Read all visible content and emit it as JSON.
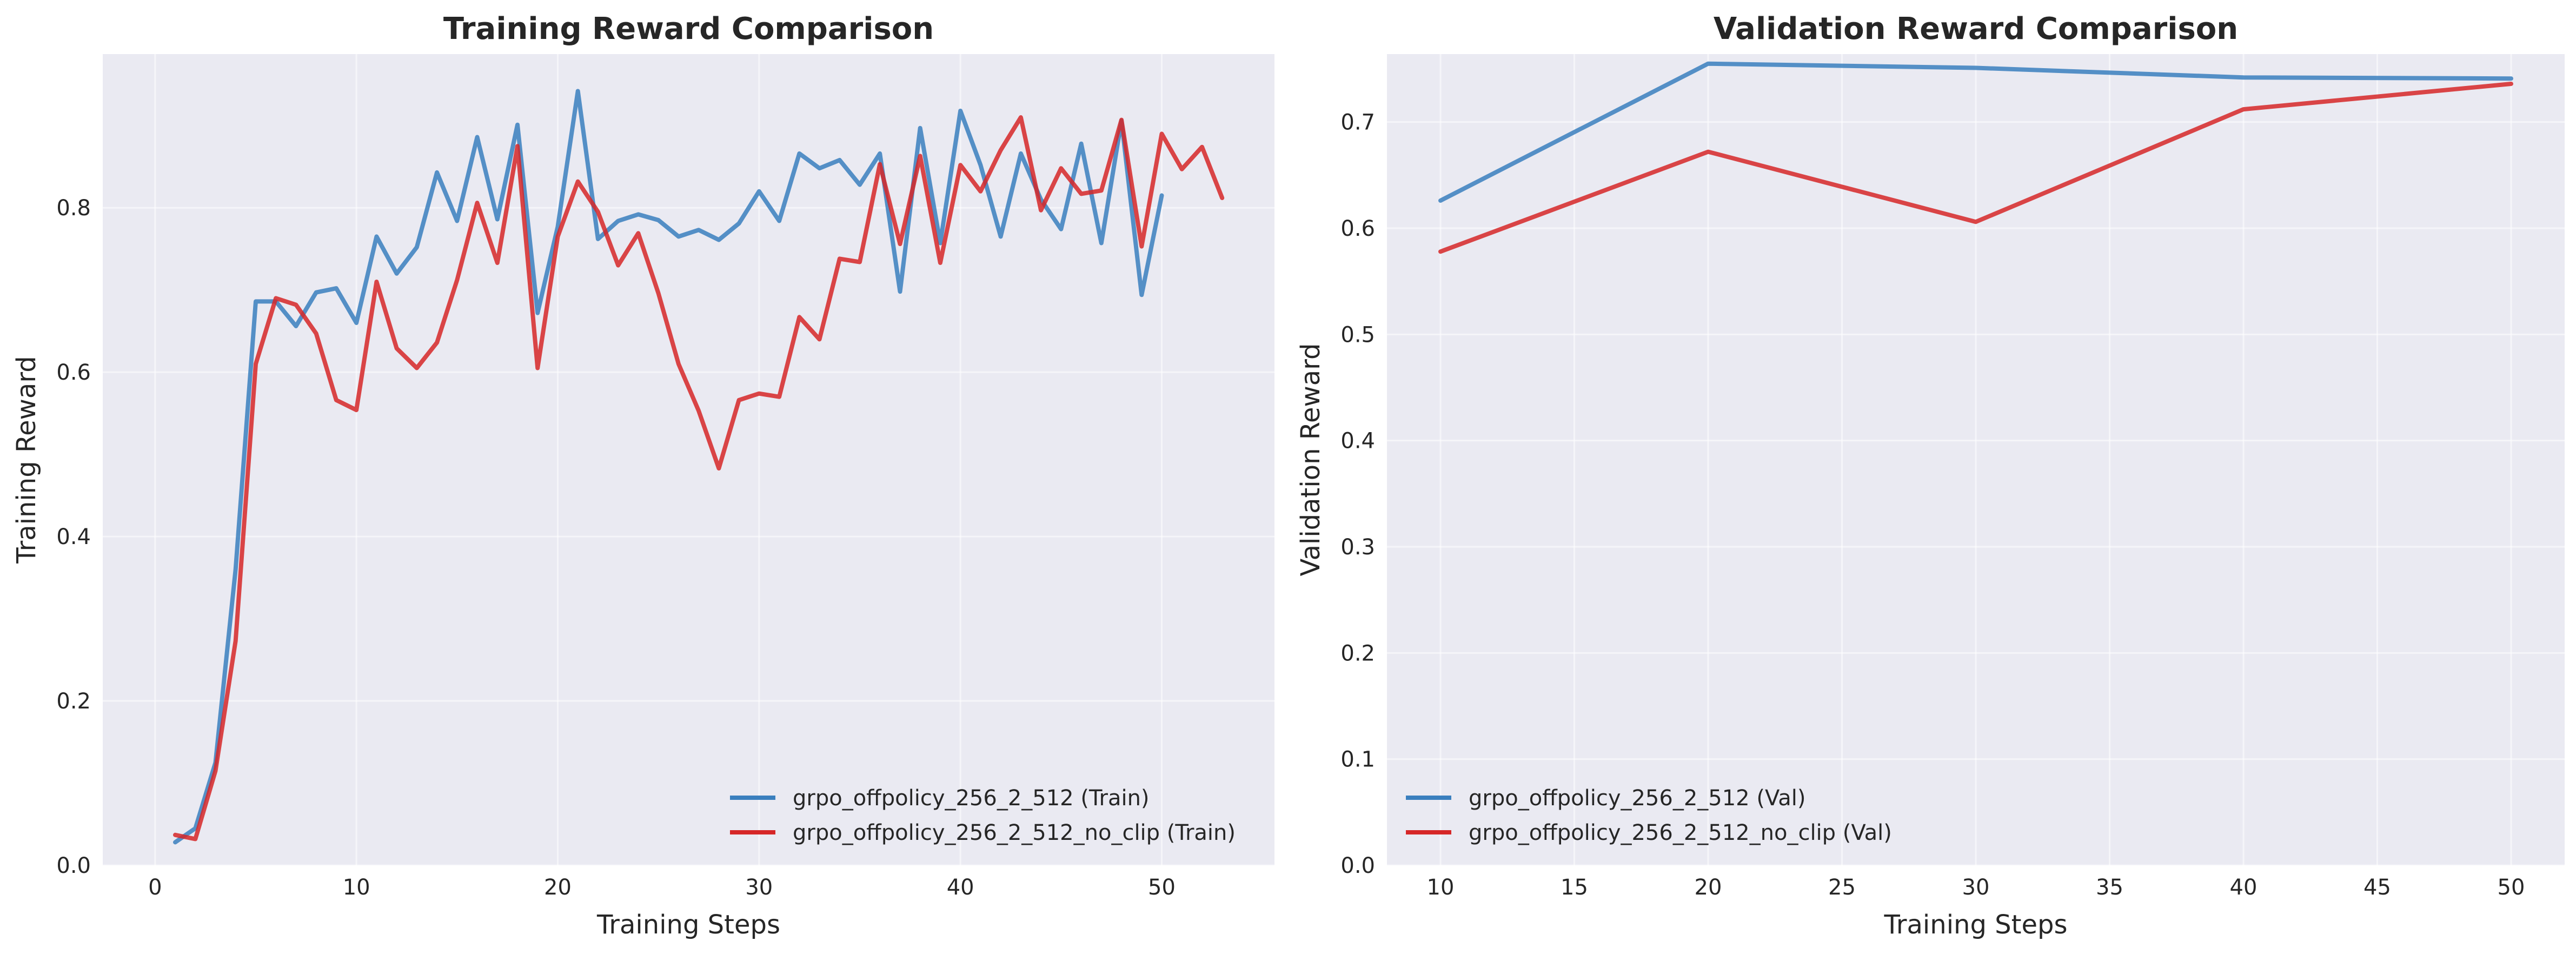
{
  "chart_data": [
    {
      "type": "line",
      "title": "Training Reward Comparison",
      "xlabel": "Training Steps",
      "ylabel": "Training Reward",
      "xlim": [
        -2.6,
        55.6
      ],
      "ylim": [
        0.0,
        0.987
      ],
      "xticks": [
        0,
        10,
        20,
        30,
        40,
        50
      ],
      "yticks": [
        0.0,
        0.2,
        0.4,
        0.6,
        0.8
      ],
      "ytick_labels": [
        "0.0",
        "0.2",
        "0.4",
        "0.6",
        "0.8"
      ],
      "grid": true,
      "legend_position": "lower right",
      "series": [
        {
          "name": "grpo_offpolicy_256_2_512 (Train)",
          "color": "#3a7fbe",
          "x": [
            1,
            2,
            3,
            4,
            5,
            6,
            7,
            8,
            9,
            10,
            11,
            12,
            13,
            14,
            15,
            16,
            17,
            18,
            19,
            20,
            21,
            22,
            23,
            24,
            25,
            26,
            27,
            28,
            29,
            30,
            31,
            32,
            33,
            34,
            35,
            36,
            37,
            38,
            39,
            40,
            41,
            42,
            43,
            44,
            45,
            46,
            47,
            48,
            49,
            50
          ],
          "y": [
            0.028,
            0.045,
            0.125,
            0.36,
            0.686,
            0.686,
            0.656,
            0.697,
            0.702,
            0.66,
            0.765,
            0.72,
            0.752,
            0.843,
            0.784,
            0.886,
            0.786,
            0.901,
            0.672,
            0.777,
            0.942,
            0.762,
            0.784,
            0.792,
            0.785,
            0.765,
            0.773,
            0.761,
            0.781,
            0.82,
            0.784,
            0.866,
            0.848,
            0.858,
            0.828,
            0.866,
            0.698,
            0.897,
            0.757,
            0.918,
            0.852,
            0.765,
            0.866,
            0.81,
            0.774,
            0.878,
            0.757,
            0.906,
            0.694,
            0.815
          ]
        },
        {
          "name": "grpo_offpolicy_256_2_512_no_clip (Train)",
          "color": "#d62728",
          "x": [
            1,
            2,
            3,
            4,
            5,
            6,
            7,
            8,
            9,
            10,
            11,
            12,
            13,
            14,
            15,
            16,
            17,
            18,
            19,
            20,
            21,
            22,
            23,
            24,
            25,
            26,
            27,
            28,
            29,
            30,
            31,
            32,
            33,
            34,
            35,
            36,
            37,
            38,
            39,
            40,
            41,
            42,
            43,
            44,
            45,
            46,
            47,
            48,
            49,
            50,
            51,
            52,
            53
          ],
          "y": [
            0.037,
            0.032,
            0.115,
            0.273,
            0.61,
            0.69,
            0.682,
            0.647,
            0.566,
            0.554,
            0.71,
            0.629,
            0.605,
            0.636,
            0.712,
            0.806,
            0.733,
            0.875,
            0.605,
            0.765,
            0.832,
            0.795,
            0.73,
            0.769,
            0.696,
            0.61,
            0.553,
            0.483,
            0.566,
            0.574,
            0.57,
            0.667,
            0.64,
            0.738,
            0.734,
            0.853,
            0.756,
            0.863,
            0.733,
            0.852,
            0.82,
            0.87,
            0.91,
            0.797,
            0.848,
            0.817,
            0.821,
            0.907,
            0.753,
            0.89,
            0.847,
            0.874,
            0.812
          ]
        }
      ]
    },
    {
      "type": "line",
      "title": "Validation Reward Comparison",
      "xlabel": "Training Steps",
      "ylabel": "Validation Reward",
      "xlim": [
        8.0,
        52.0
      ],
      "ylim": [
        0.0,
        0.764
      ],
      "xticks": [
        10,
        15,
        20,
        25,
        30,
        35,
        40,
        45,
        50
      ],
      "yticks": [
        0.0,
        0.1,
        0.2,
        0.3,
        0.4,
        0.5,
        0.6,
        0.7
      ],
      "ytick_labels": [
        "0.0",
        "0.1",
        "0.2",
        "0.3",
        "0.4",
        "0.5",
        "0.6",
        "0.7"
      ],
      "grid": true,
      "legend_position": "lower left",
      "series": [
        {
          "name": "grpo_offpolicy_256_2_512 (Val)",
          "color": "#3a7fbe",
          "x": [
            10,
            20,
            30,
            40,
            50
          ],
          "y": [
            0.626,
            0.755,
            0.751,
            0.742,
            0.741
          ]
        },
        {
          "name": "grpo_offpolicy_256_2_512_no_clip (Val)",
          "color": "#d62728",
          "x": [
            10,
            20,
            30,
            40,
            50
          ],
          "y": [
            0.578,
            0.672,
            0.606,
            0.712,
            0.736
          ]
        }
      ]
    }
  ]
}
